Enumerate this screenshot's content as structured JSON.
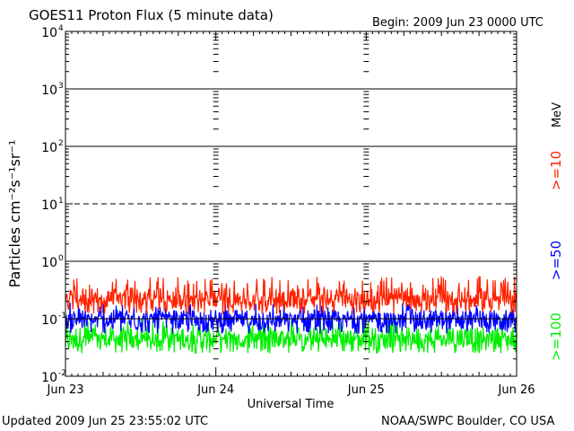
{
  "header": {
    "title": "GOES11 Proton Flux (5 minute data)",
    "begin": "Begin: 2009 Jun 23 0000 UTC"
  },
  "footer": {
    "updated": "Updated 2009 Jun 25 23:55:02 UTC",
    "credit": "NOAA/SWPC Boulder, CO USA"
  },
  "chart_data": {
    "type": "line",
    "title": "GOES11 Proton Flux (5 minute data)",
    "xlabel": "Universal Time",
    "ylabel": "Particles cm⁻²s⁻¹sr⁻¹",
    "yscale": "log",
    "ylim": [
      0.01,
      10000
    ],
    "y_ticks": [
      {
        "base": "10",
        "exp": "4"
      },
      {
        "base": "10",
        "exp": "3"
      },
      {
        "base": "10",
        "exp": "2"
      },
      {
        "base": "10",
        "exp": "1"
      },
      {
        "base": "10",
        "exp": "0"
      },
      {
        "base": "10",
        "exp": "-1"
      },
      {
        "base": "10",
        "exp": "-2"
      }
    ],
    "x_ticks": [
      "Jun 23",
      "Jun 24",
      "Jun 25",
      "Jun 26"
    ],
    "xlim_days": [
      0,
      3
    ],
    "unit_label": "MeV",
    "series": [
      {
        "name": ">=10",
        "color": "#ff2200",
        "mean": 0.22,
        "low": 0.12,
        "high": 0.55
      },
      {
        "name": ">=50",
        "color": "#0000ff",
        "mean": 0.09,
        "low": 0.055,
        "high": 0.19
      },
      {
        "name": ">=100",
        "color": "#00ee00",
        "mean": 0.045,
        "low": 0.025,
        "high": 0.1
      }
    ],
    "threshold_lines": [
      1000,
      100,
      10,
      1,
      0.1
    ],
    "threshold_dashed": [
      10
    ],
    "grid": false,
    "legend": "right"
  }
}
